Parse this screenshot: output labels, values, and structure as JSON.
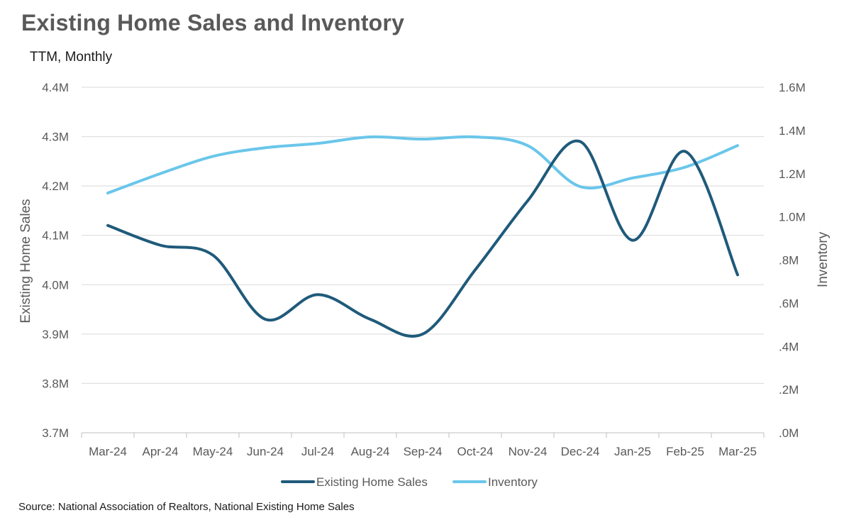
{
  "chart_data": {
    "type": "line",
    "title": "Existing Home Sales and Inventory",
    "subtitle": "TTM, Monthly",
    "source": "Source: National Association of Realtors, National Existing Home Sales",
    "categories": [
      "Mar-24",
      "Apr-24",
      "May-24",
      "Jun-24",
      "Jul-24",
      "Aug-24",
      "Sep-24",
      "Oct-24",
      "Nov-24",
      "Dec-24",
      "Jan-25",
      "Feb-25",
      "Mar-25"
    ],
    "y_left": {
      "label": "Existing Home Sales",
      "range": [
        3.7,
        4.4
      ],
      "ticks": [
        3.7,
        3.8,
        3.9,
        4.0,
        4.1,
        4.2,
        4.3,
        4.4
      ],
      "tick_labels": [
        "3.7M",
        "3.8M",
        "3.9M",
        "4.0M",
        "4.1M",
        "4.2M",
        "4.3M",
        "4.4M"
      ]
    },
    "y_right": {
      "label": "Inventory",
      "range": [
        0,
        1.6
      ],
      "ticks": [
        0,
        0.2,
        0.4,
        0.6,
        0.8,
        1.0,
        1.2,
        1.4,
        1.6
      ],
      "tick_labels": [
        ".0M",
        ".2M",
        ".4M",
        ".6M",
        ".8M",
        "1.0M",
        "1.2M",
        "1.4M",
        "1.6M"
      ]
    },
    "series": [
      {
        "name": "Existing Home Sales",
        "axis": "left",
        "color": "#1f5a7a",
        "values": [
          4.12,
          4.08,
          4.06,
          3.93,
          3.98,
          3.93,
          3.9,
          4.03,
          4.17,
          4.29,
          4.09,
          4.27,
          4.02
        ]
      },
      {
        "name": "Inventory",
        "axis": "right",
        "color": "#6ac6ea",
        "values": [
          1.11,
          1.2,
          1.28,
          1.32,
          1.34,
          1.37,
          1.36,
          1.37,
          1.33,
          1.14,
          1.18,
          1.23,
          1.33
        ]
      }
    ],
    "grid": true,
    "legend": "bottom-center"
  }
}
